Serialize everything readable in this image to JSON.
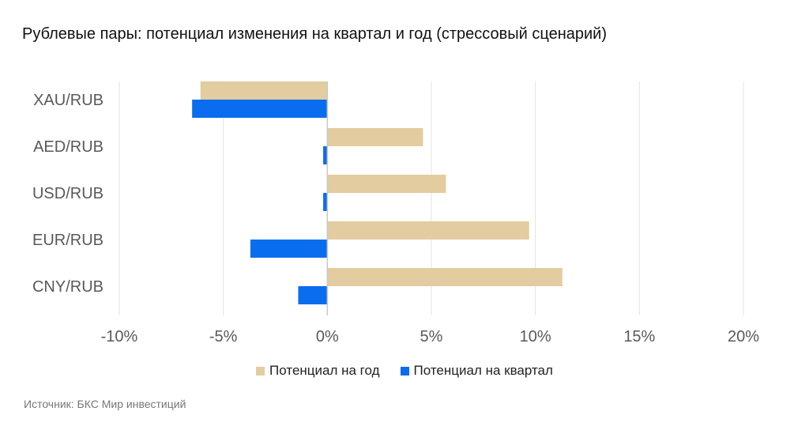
{
  "chart_data": {
    "type": "bar",
    "orientation": "horizontal",
    "title": "Рублевые пары: потенциал изменения на квартал и год (стрессовый сценарий)",
    "categories": [
      "XAU/RUB",
      "AED/RUB",
      "USD/RUB",
      "EUR/RUB",
      "CNY/RUB"
    ],
    "series": [
      {
        "name": "Потенциал на год",
        "color": "#E3CC9F",
        "values": [
          -6.1,
          4.6,
          5.7,
          9.7,
          11.3
        ]
      },
      {
        "name": "Потенциал на квартал",
        "color": "#0A6DF0",
        "values": [
          -6.5,
          -0.2,
          -0.2,
          -3.7,
          -1.4
        ]
      }
    ],
    "xlim": [
      -10,
      20
    ],
    "xticks": [
      -10,
      -5,
      0,
      5,
      10,
      15,
      20
    ],
    "xtick_labels": [
      "-10%",
      "-5%",
      "0%",
      "5%",
      "10%",
      "15%",
      "20%"
    ],
    "grid": true,
    "legend": "bottom"
  },
  "source": "Источник: БКС Мир инвестиций"
}
